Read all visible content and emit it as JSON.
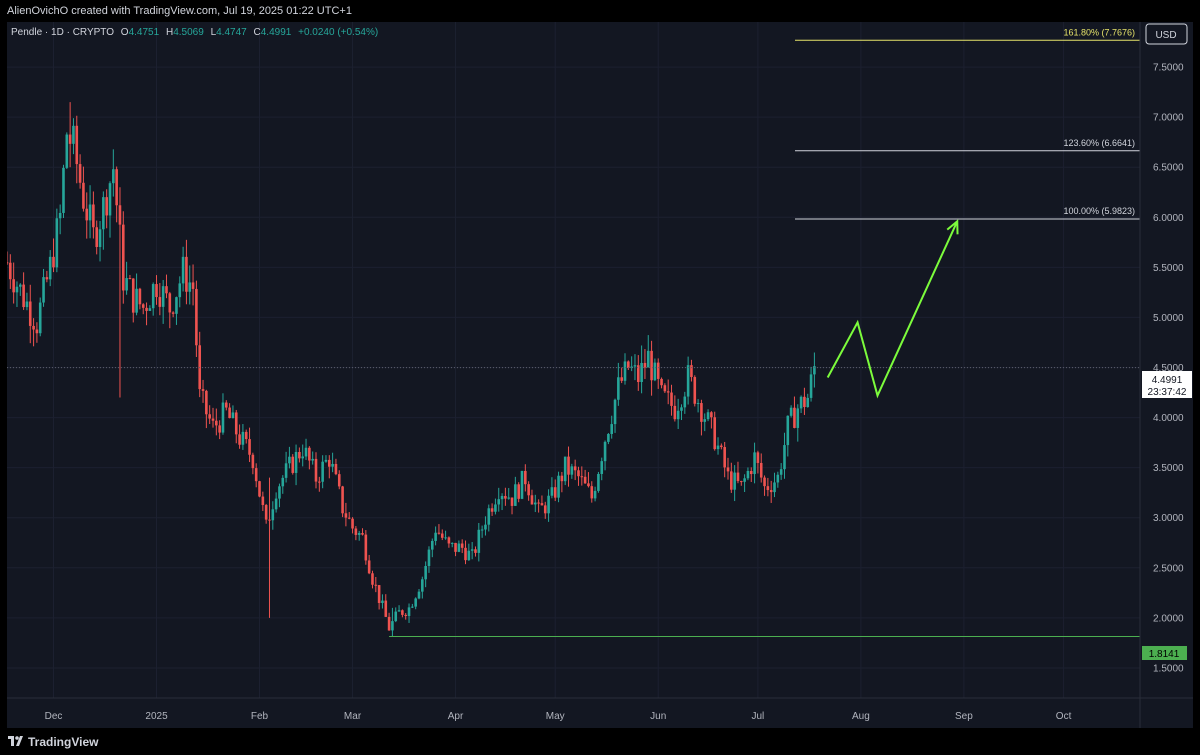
{
  "header": {
    "attribution": "AlienOvichO created with TradingView.com, Jul 19, 2025 01:22 UTC+1"
  },
  "legend": {
    "symbol": "Pendle · 1D · CRYPTO",
    "o_label": "O",
    "o_value": "4.4751",
    "h_label": "H",
    "h_value": "4.5069",
    "l_label": "L",
    "l_value": "4.4747",
    "c_label": "C",
    "c_value": "4.4991",
    "change": "+0.0240 (+0.54%)"
  },
  "currency": "USD",
  "price_label": {
    "value": "4.4991",
    "countdown": "23:37:42"
  },
  "support_label": "1.8141",
  "footer": {
    "brand": "TradingView"
  },
  "colors": {
    "bg": "#131722",
    "up": "#26a69a",
    "down": "#ef5350",
    "fib_top": "#e6e36a",
    "fib_line": "#d1d4dc",
    "support": "#4caf50",
    "projection": "#7cfc3c"
  },
  "chart_data": {
    "type": "candlestick",
    "y_axis": {
      "ticks": [
        "1.5000",
        "2.0000",
        "2.5000",
        "3.0000",
        "3.5000",
        "4.0000",
        "4.5000",
        "5.0000",
        "5.5000",
        "6.0000",
        "6.5000",
        "7.0000",
        "7.5000"
      ],
      "range": [
        1.2,
        7.95
      ]
    },
    "x_axis": {
      "ticks": [
        "Dec",
        "2025",
        "Feb",
        "Mar",
        "Apr",
        "May",
        "Jun",
        "Jul",
        "Aug",
        "Sep",
        "Oct"
      ],
      "range": [
        "2024-11-17",
        "2025-10-24"
      ]
    },
    "fib_levels": [
      {
        "label": "161.80% (7.7676)",
        "value": 7.7676,
        "color": "#e6e36a"
      },
      {
        "label": "123.60% (6.6641)",
        "value": 6.6641,
        "color": "#d1d4dc"
      },
      {
        "label": "100.00% (5.9823)",
        "value": 5.9823,
        "color": "#d1d4dc"
      }
    ],
    "support_level": 1.8141,
    "last_price": 4.4991,
    "projection": [
      {
        "date": "2025-07-22",
        "price": 4.4
      },
      {
        "date": "2025-07-31",
        "price": 4.95
      },
      {
        "date": "2025-08-06",
        "price": 4.22
      },
      {
        "date": "2025-08-30",
        "price": 5.96
      }
    ],
    "close_path": [
      {
        "date": "2024-11-17",
        "price": 5.55
      },
      {
        "date": "2024-11-22",
        "price": 5.2
      },
      {
        "date": "2024-11-26",
        "price": 4.95
      },
      {
        "date": "2024-11-30",
        "price": 5.5
      },
      {
        "date": "2024-12-03",
        "price": 6.0
      },
      {
        "date": "2024-12-05",
        "price": 6.85
      },
      {
        "date": "2024-12-07",
        "price": 6.7
      },
      {
        "date": "2024-12-10",
        "price": 6.2
      },
      {
        "date": "2024-12-13",
        "price": 5.8
      },
      {
        "date": "2024-12-16",
        "price": 6.1
      },
      {
        "date": "2024-12-19",
        "price": 6.5
      },
      {
        "date": "2024-12-22",
        "price": 5.4
      },
      {
        "date": "2024-12-25",
        "price": 5.2
      },
      {
        "date": "2024-12-28",
        "price": 5.1
      },
      {
        "date": "2025-01-01",
        "price": 5.35
      },
      {
        "date": "2025-01-05",
        "price": 5.1
      },
      {
        "date": "2025-01-09",
        "price": 5.45
      },
      {
        "date": "2025-01-12",
        "price": 5.3
      },
      {
        "date": "2025-01-14",
        "price": 4.2
      },
      {
        "date": "2025-01-18",
        "price": 3.9
      },
      {
        "date": "2025-01-22",
        "price": 4.05
      },
      {
        "date": "2025-01-26",
        "price": 3.8
      },
      {
        "date": "2025-01-30",
        "price": 3.6
      },
      {
        "date": "2025-02-03",
        "price": 2.9
      },
      {
        "date": "2025-02-06",
        "price": 3.3
      },
      {
        "date": "2025-02-10",
        "price": 3.5
      },
      {
        "date": "2025-02-14",
        "price": 3.7
      },
      {
        "date": "2025-02-18",
        "price": 3.4
      },
      {
        "date": "2025-02-22",
        "price": 3.6
      },
      {
        "date": "2025-02-26",
        "price": 3.1
      },
      {
        "date": "2025-03-01",
        "price": 2.9
      },
      {
        "date": "2025-03-04",
        "price": 2.8
      },
      {
        "date": "2025-03-07",
        "price": 2.4
      },
      {
        "date": "2025-03-10",
        "price": 2.1
      },
      {
        "date": "2025-03-12",
        "price": 1.9
      },
      {
        "date": "2025-03-15",
        "price": 2.05
      },
      {
        "date": "2025-03-18",
        "price": 2.1
      },
      {
        "date": "2025-03-22",
        "price": 2.4
      },
      {
        "date": "2025-03-26",
        "price": 2.9
      },
      {
        "date": "2025-03-30",
        "price": 2.7
      },
      {
        "date": "2025-04-03",
        "price": 2.7
      },
      {
        "date": "2025-04-06",
        "price": 2.6
      },
      {
        "date": "2025-04-10",
        "price": 3.0
      },
      {
        "date": "2025-04-14",
        "price": 3.3
      },
      {
        "date": "2025-04-18",
        "price": 3.2
      },
      {
        "date": "2025-04-22",
        "price": 3.4
      },
      {
        "date": "2025-04-26",
        "price": 3.05
      },
      {
        "date": "2025-04-30",
        "price": 3.2
      },
      {
        "date": "2025-05-04",
        "price": 3.5
      },
      {
        "date": "2025-05-08",
        "price": 3.4
      },
      {
        "date": "2025-05-12",
        "price": 3.2
      },
      {
        "date": "2025-05-16",
        "price": 3.8
      },
      {
        "date": "2025-05-20",
        "price": 4.3
      },
      {
        "date": "2025-05-23",
        "price": 4.5
      },
      {
        "date": "2025-05-26",
        "price": 4.4
      },
      {
        "date": "2025-05-29",
        "price": 4.6
      },
      {
        "date": "2025-06-02",
        "price": 4.2
      },
      {
        "date": "2025-06-06",
        "price": 4.1
      },
      {
        "date": "2025-06-10",
        "price": 4.4
      },
      {
        "date": "2025-06-14",
        "price": 4.1
      },
      {
        "date": "2025-06-18",
        "price": 3.8
      },
      {
        "date": "2025-06-22",
        "price": 3.4
      },
      {
        "date": "2025-06-26",
        "price": 3.3
      },
      {
        "date": "2025-06-30",
        "price": 3.6
      },
      {
        "date": "2025-07-03",
        "price": 3.3
      },
      {
        "date": "2025-07-07",
        "price": 3.4
      },
      {
        "date": "2025-07-10",
        "price": 3.9
      },
      {
        "date": "2025-07-13",
        "price": 4.1
      },
      {
        "date": "2025-07-16",
        "price": 4.2
      },
      {
        "date": "2025-07-18",
        "price": 4.5
      }
    ],
    "wick_extremes": [
      {
        "date": "2024-12-06",
        "high": 7.15,
        "low": 6.5
      },
      {
        "date": "2024-12-21",
        "high": 6.3,
        "low": 4.2
      },
      {
        "date": "2025-02-04",
        "high": 3.4,
        "low": 2.0
      },
      {
        "date": "2025-03-13",
        "high": 2.1,
        "low": 1.81
      },
      {
        "date": "2025-05-27",
        "high": 4.72,
        "low": 4.3
      },
      {
        "date": "2025-07-18",
        "high": 4.65,
        "low": 4.3
      }
    ]
  }
}
